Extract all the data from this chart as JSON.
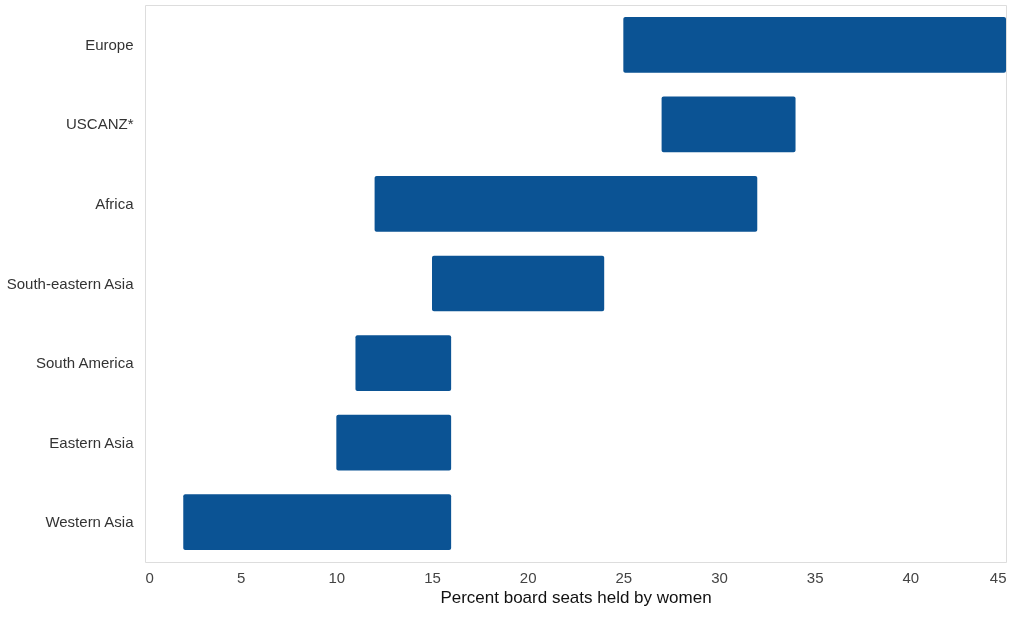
{
  "chart_data": {
    "type": "bar",
    "orientation": "horizontal",
    "xlabel": "Percent board seats held by women",
    "categories": [
      "Europe",
      "USCANZ*",
      "Africa",
      "South-eastern Asia",
      "South America",
      "Eastern Asia",
      "Western Asia"
    ],
    "base": [
      25,
      27,
      12,
      15,
      11,
      10,
      2
    ],
    "values": [
      20,
      7,
      20,
      9,
      5,
      6,
      14
    ],
    "color": "#0b5394",
    "xlim": [
      0,
      45
    ],
    "xticks": [
      0,
      5,
      10,
      15,
      20,
      25,
      30,
      35,
      40,
      45
    ],
    "grid": false
  }
}
